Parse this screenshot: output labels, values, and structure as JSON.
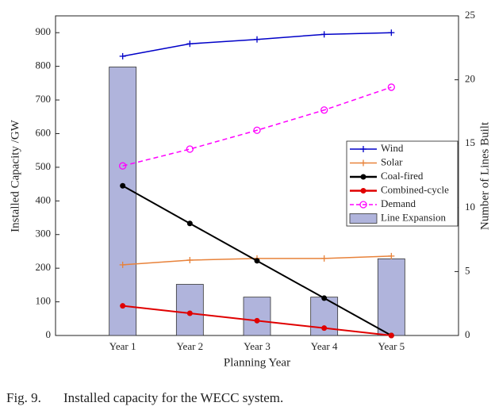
{
  "chart_data": {
    "type": "combo",
    "ylabel": "Installed Capacity /GW",
    "y2label": "Number of Lines Built",
    "xlabel": "Planning Year",
    "categories": [
      "Year 1",
      "Year 2",
      "Year 3",
      "Year 4",
      "Year 5"
    ],
    "ylim": [
      0,
      950
    ],
    "yticks": [
      0,
      100,
      200,
      300,
      400,
      500,
      600,
      700,
      800,
      900
    ],
    "y2lim": [
      0,
      25
    ],
    "y2ticks": [
      0,
      5,
      10,
      15,
      20,
      25
    ],
    "series": [
      {
        "name": "Wind",
        "type": "line",
        "marker": "plus",
        "color": "#0000c8",
        "values": [
          830,
          867,
          880,
          895,
          900
        ]
      },
      {
        "name": "Solar",
        "type": "line",
        "marker": "plus",
        "color": "#e8823a",
        "values": [
          210,
          224,
          229,
          229,
          236
        ]
      },
      {
        "name": "Coal-fired",
        "type": "line",
        "marker": "dot",
        "color": "#000000",
        "values": [
          445,
          333,
          222,
          111,
          0
        ]
      },
      {
        "name": "Combined-cycle",
        "type": "line",
        "marker": "dot",
        "color": "#e00000",
        "values": [
          88,
          66,
          44,
          22,
          0
        ]
      },
      {
        "name": "Demand",
        "type": "line",
        "marker": "circle",
        "dashed": true,
        "color": "#ff00ff",
        "values": [
          504,
          554,
          610,
          670,
          738
        ]
      },
      {
        "name": "Line Expansion",
        "type": "bar",
        "axis": "y2",
        "color": "#b0b4dc",
        "values": [
          21,
          4,
          3,
          3,
          6
        ]
      }
    ]
  },
  "caption": {
    "label": "Fig. 9.",
    "text": "Installed capacity for the WECC system."
  }
}
